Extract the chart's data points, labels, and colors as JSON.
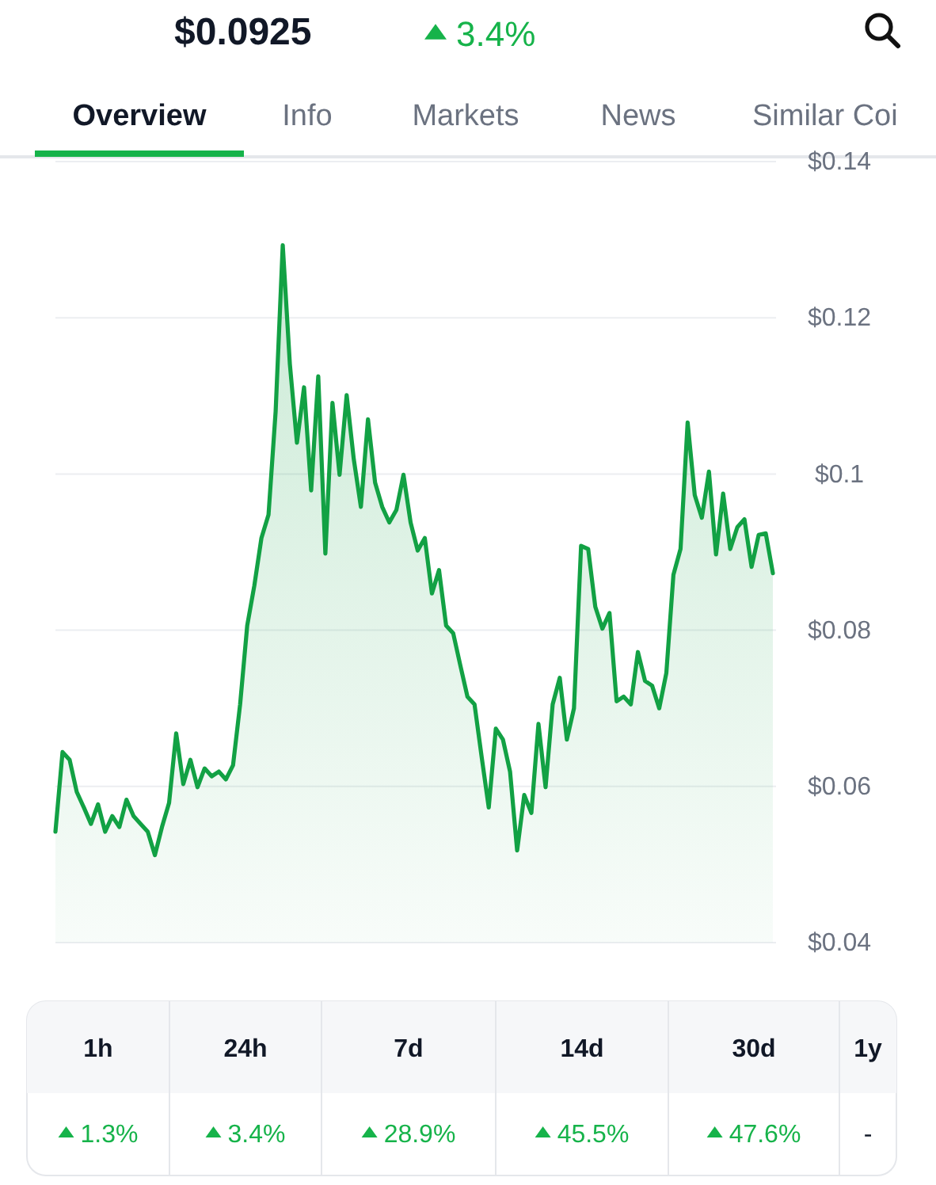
{
  "chart_data": [
    {
      "type": "other",
      "title": "$0.0925",
      "subtitle": "3.4%",
      "annotations": [
        "Overview",
        "Info",
        "Markets",
        "News",
        "Similar Coi"
      ]
    },
    {
      "type": "area",
      "categories": [
        null,
        null,
        null,
        null,
        null,
        null,
        null,
        null,
        null,
        null,
        null,
        null,
        null,
        null,
        null,
        null,
        null,
        null,
        null,
        null,
        null,
        null,
        null,
        null,
        null,
        null,
        null,
        null,
        null,
        null,
        null,
        null,
        null,
        null,
        null,
        null,
        null,
        null,
        null,
        null,
        null,
        null,
        null,
        null,
        null,
        null,
        null,
        null,
        null,
        null,
        null,
        null,
        null,
        null,
        null,
        null,
        null,
        null,
        null,
        null,
        null,
        null,
        null,
        null,
        null,
        null,
        null,
        null,
        null,
        null,
        null,
        null,
        null,
        null,
        null,
        null,
        null,
        null,
        null,
        null,
        null,
        null,
        null,
        null,
        null,
        null,
        null,
        null,
        null,
        null,
        null,
        null,
        null,
        null,
        null,
        null,
        null,
        null,
        null,
        null,
        null,
        null
      ],
      "series": [
        {
          "color": "#12a144",
          "values": [
            0.0542,
            0.0644,
            0.0634,
            0.0593,
            0.0573,
            0.0552,
            0.0577,
            0.0542,
            0.0562,
            0.0548,
            0.0583,
            0.0562,
            0.0552,
            0.0542,
            0.0512,
            0.0548,
            0.0579,
            0.0668,
            0.0603,
            0.0634,
            0.0599,
            0.0623,
            0.0613,
            0.0619,
            0.0609,
            0.0627,
            0.0705,
            0.0806,
            0.0857,
            0.0918,
            0.0948,
            0.108,
            0.1293,
            0.1141,
            0.104,
            0.1111,
            0.0979,
            0.1125,
            0.0898,
            0.1091,
            0.0999,
            0.1101,
            0.1019,
            0.0958,
            0.107,
            0.0989,
            0.0958,
            0.0938,
            0.0954,
            0.0999,
            0.0938,
            0.0902,
            0.0918,
            0.0847,
            0.0877,
            0.0806,
            0.0796,
            0.0755,
            0.0715,
            0.0705,
            0.0638,
            0.0573,
            0.0674,
            0.066,
            0.0619,
            0.0518,
            0.0589,
            0.0566,
            0.068,
            0.0599,
            0.0705,
            0.0739,
            0.066,
            0.07,
            0.0908,
            0.0904,
            0.083,
            0.0802,
            0.0822,
            0.0709,
            0.0715,
            0.0705,
            0.0772,
            0.0735,
            0.0729,
            0.07,
            0.0745,
            0.0871,
            0.0904,
            0.1066,
            0.0973,
            0.0944,
            0.1003,
            0.0897,
            0.0975,
            0.0904,
            0.0932,
            0.0942,
            0.0881,
            0.0922,
            0.0924,
            0.0873
          ]
        }
      ],
      "ylim": [
        0.04,
        0.14
      ],
      "yticks": [
        {
          "value": 0.04,
          "label": "$0.04"
        },
        {
          "value": 0.06,
          "label": "$0.06"
        },
        {
          "value": 0.08,
          "label": "$0.08"
        },
        {
          "value": 0.1,
          "label": "$0.1"
        },
        {
          "value": 0.12,
          "label": "$0.12"
        },
        {
          "value": 0.14,
          "label": "$0.14"
        }
      ],
      "grid": "y",
      "tick_labels": "y"
    },
    {
      "type": "other",
      "categories": [
        "1h",
        "24h",
        "7d",
        "14d",
        "30d",
        "1y"
      ],
      "value_labels": [
        "1.3%",
        "3.4%",
        "28.9%",
        "45.5%",
        "47.6%",
        null
      ],
      "annotations": [
        "-"
      ]
    }
  ]
}
